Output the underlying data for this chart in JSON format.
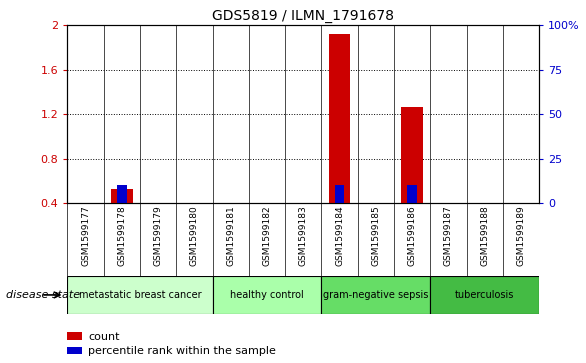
{
  "title": "GDS5819 / ILMN_1791678",
  "samples": [
    "GSM1599177",
    "GSM1599178",
    "GSM1599179",
    "GSM1599180",
    "GSM1599181",
    "GSM1599182",
    "GSM1599183",
    "GSM1599184",
    "GSM1599185",
    "GSM1599186",
    "GSM1599187",
    "GSM1599188",
    "GSM1599189"
  ],
  "count_values": [
    0.0,
    0.53,
    0.0,
    0.0,
    0.0,
    0.0,
    0.0,
    1.92,
    0.0,
    1.27,
    0.0,
    0.0,
    0.0
  ],
  "percentile_values_right": [
    0,
    10,
    0,
    0,
    0,
    0,
    0,
    10,
    0,
    10,
    0,
    0,
    0
  ],
  "ylim_left": [
    0.4,
    2.0
  ],
  "ylim_right": [
    0,
    100
  ],
  "yticks_left": [
    0.4,
    0.8,
    1.2,
    1.6,
    2.0
  ],
  "yticks_right": [
    0,
    25,
    50,
    75,
    100
  ],
  "ytick_labels_left": [
    "0.4",
    "0.8",
    "1.2",
    "1.6",
    "2"
  ],
  "ytick_labels_right": [
    "0",
    "25",
    "50",
    "75",
    "100%"
  ],
  "count_color": "#cc0000",
  "percentile_color": "#0000cc",
  "sample_bg_color": "#cccccc",
  "disease_groups": [
    {
      "label": "metastatic breast cancer",
      "start": 0,
      "end": 3,
      "color": "#ccffcc"
    },
    {
      "label": "healthy control",
      "start": 4,
      "end": 6,
      "color": "#aaffaa"
    },
    {
      "label": "gram-negative sepsis",
      "start": 7,
      "end": 9,
      "color": "#66dd66"
    },
    {
      "label": "tuberculosis",
      "start": 10,
      "end": 12,
      "color": "#44bb44"
    }
  ],
  "disease_state_label": "disease state",
  "legend_count_label": "count",
  "legend_percentile_label": "percentile rank within the sample",
  "fig_width": 5.86,
  "fig_height": 3.63
}
